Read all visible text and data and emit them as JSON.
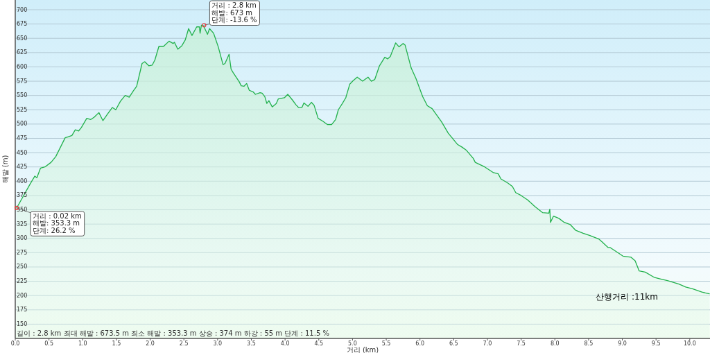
{
  "chart_data": {
    "type": "area",
    "xlabel": "거리 (km)",
    "ylabel": "해발 (m)",
    "xlim": [
      0,
      10.3
    ],
    "ylim": [
      125,
      717
    ],
    "xticks": [
      {
        "value": 0,
        "label": "0.0"
      },
      0.5,
      {
        "value": 1,
        "label": "1.0"
      },
      1.5,
      {
        "value": 2,
        "label": "2.0"
      },
      2.5,
      {
        "value": 3,
        "label": "3.0"
      },
      3.5,
      {
        "value": 4,
        "label": "4.0"
      },
      4.5,
      {
        "value": 5,
        "label": "5.0"
      },
      5.5,
      {
        "value": 6,
        "label": "6.0"
      },
      6.5,
      {
        "value": 7,
        "label": "7.0"
      },
      7.5,
      {
        "value": 8,
        "label": "8.0"
      },
      8.5,
      {
        "value": 9,
        "label": "9.0"
      },
      9.5,
      {
        "value": 10,
        "label": "10.0"
      }
    ],
    "yticks": [
      150,
      175,
      200,
      225,
      250,
      275,
      300,
      325,
      350,
      375,
      400,
      425,
      450,
      475,
      500,
      525,
      550,
      575,
      600,
      625,
      650,
      675,
      700
    ],
    "grid": "y",
    "series": [
      {
        "color": "#22b14c",
        "x": [
          0.02,
          0.22,
          0.29,
          0.32,
          0.375,
          0.44,
          0.53,
          0.6,
          0.74,
          0.79,
          0.84,
          0.89,
          0.94,
          0.98,
          1.06,
          1.12,
          1.17,
          1.24,
          1.3,
          1.37,
          1.44,
          1.49,
          1.56,
          1.63,
          1.69,
          1.75,
          1.8,
          1.88,
          1.92,
          1.98,
          2.03,
          2.07,
          2.13,
          2.2,
          2.28,
          2.34,
          2.36,
          2.41,
          2.47,
          2.52,
          2.57,
          2.62,
          2.69,
          2.73,
          2.74,
          2.76,
          2.79,
          2.85,
          2.88,
          2.94,
          3.01,
          3.08,
          3.11,
          3.17,
          3.2,
          3.23,
          3.32,
          3.35,
          3.39,
          3.43,
          3.47,
          3.53,
          3.56,
          3.63,
          3.66,
          3.7,
          3.73,
          3.76,
          3.81,
          3.87,
          3.9,
          3.99,
          4.04,
          4.11,
          4.16,
          4.2,
          4.25,
          4.28,
          4.34,
          4.39,
          4.43,
          4.49,
          4.56,
          4.63,
          4.69,
          4.75,
          4.79,
          4.85,
          4.9,
          4.96,
          5.01,
          5.07,
          5.15,
          5.23,
          5.28,
          5.33,
          5.4,
          5.48,
          5.52,
          5.56,
          5.64,
          5.69,
          5.75,
          5.78,
          5.87,
          5.94,
          6.04,
          6.11,
          6.18,
          6.32,
          6.42,
          6.56,
          6.62,
          6.69,
          6.79,
          6.82,
          6.96,
          7.09,
          7.16,
          7.2,
          7.3,
          7.37,
          7.42,
          7.5,
          7.6,
          7.7,
          7.82,
          7.91,
          7.925,
          7.935,
          7.98,
          8.06,
          8.14,
          8.23,
          8.31,
          8.42,
          8.52,
          8.65,
          8.7,
          8.79,
          8.82,
          8.91,
          9.01,
          9.13,
          9.19,
          9.25,
          9.34,
          9.47,
          9.57,
          9.67,
          9.84,
          9.94,
          10.04,
          10.18,
          10.29
        ],
        "values": [
          353,
          395,
          409,
          406,
          423,
          425,
          433,
          443,
          476,
          478,
          480,
          490,
          488,
          494,
          510,
          508,
          512,
          520,
          506,
          518,
          529,
          525,
          540,
          550,
          547,
          558,
          566,
          606,
          609,
          602,
          603,
          612,
          636,
          636,
          645,
          641,
          643,
          631,
          637,
          647,
          667,
          655,
          670,
          670,
          659,
          673,
          672,
          657,
          667,
          659,
          635,
          604,
          606,
          622,
          596,
          590,
          574,
          567,
          566,
          571,
          559,
          556,
          552,
          555,
          554,
          548,
          536,
          541,
          530,
          536,
          544,
          546,
          552,
          542,
          534,
          529,
          529,
          537,
          531,
          538,
          533,
          510,
          505,
          499,
          499,
          508,
          525,
          536,
          546,
          570,
          576,
          582,
          575,
          582,
          575,
          578,
          602,
          617,
          614,
          618,
          642,
          635,
          641,
          638,
          598,
          580,
          548,
          532,
          527,
          504,
          484,
          464,
          460,
          454,
          440,
          433,
          425,
          415,
          413,
          404,
          397,
          391,
          380,
          375,
          367,
          356,
          345,
          344,
          351,
          328,
          339,
          335,
          328,
          324,
          314,
          309,
          305,
          299,
          294,
          284,
          284,
          277,
          269,
          267,
          261,
          243,
          241,
          232,
          229,
          226,
          220,
          215,
          212,
          206,
          203
        ]
      }
    ],
    "annotations": [
      {
        "text": "거리 : 2.8 km\n해발: 673 m\n단계: -13.6 %",
        "x": 2.8,
        "y": 673
      },
      {
        "text": "거리 : 0.02 km\n해발: 353.3 m\n단계: 26.2 %",
        "x": 0.02,
        "y": 353.3
      },
      "길이 : 2.8 km    최대 해발 : 673.5 m    최소 해발 : 353.3 m    상승 : 374 m    하강 : 55 m    단계 : 11.5 %",
      "산행거리 :11km"
    ]
  }
}
